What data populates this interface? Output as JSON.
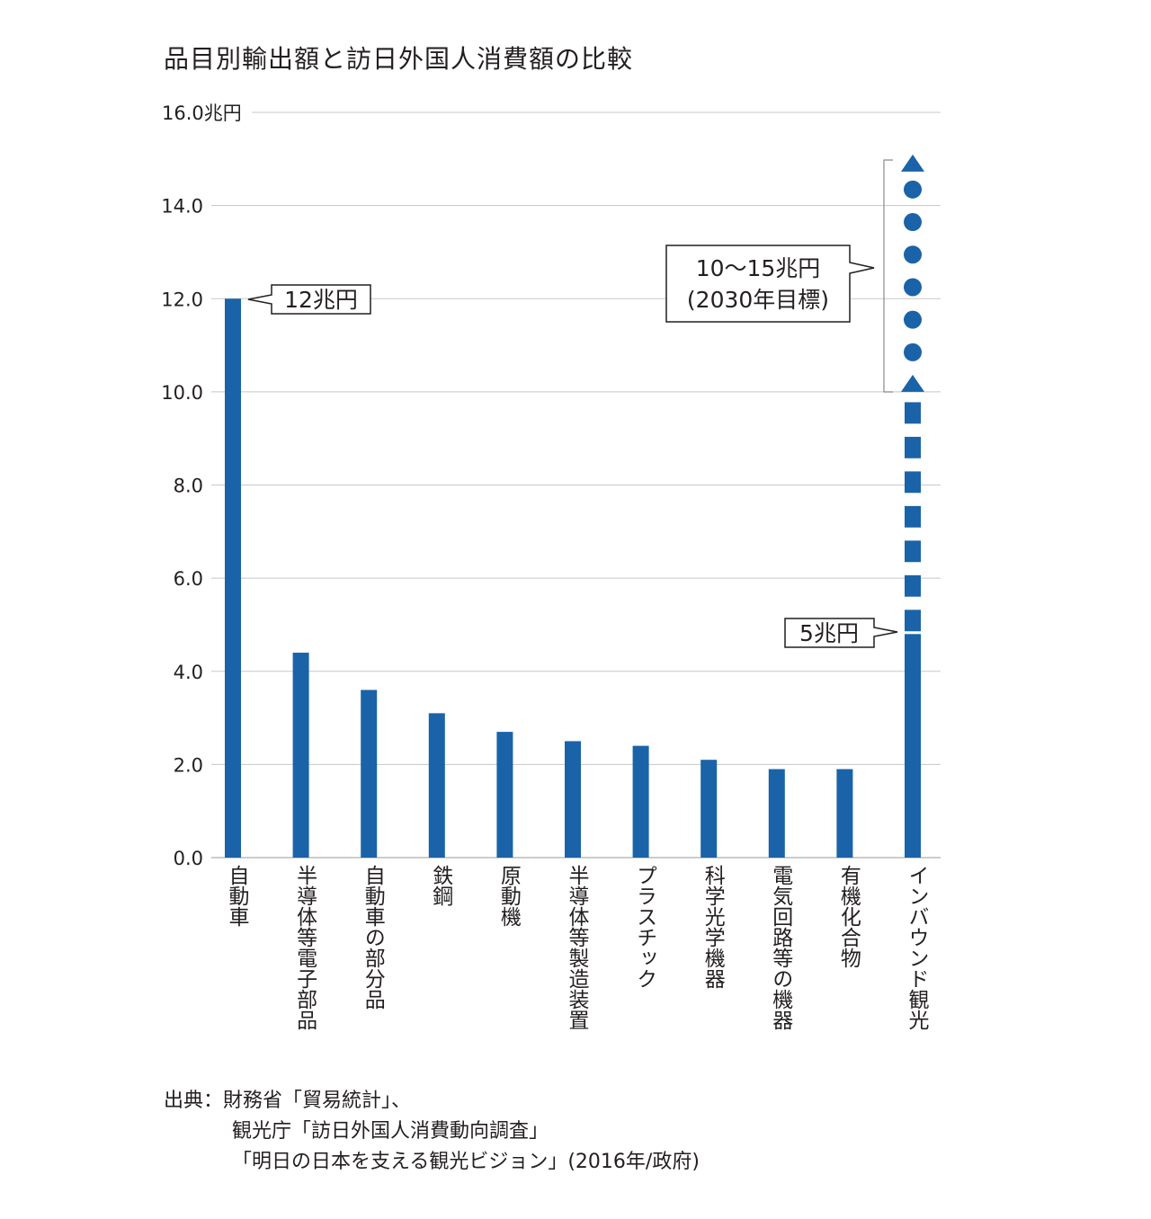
{
  "chart_data": {
    "type": "bar",
    "title": "品目別輸出額と訪日外国人消費額の比較",
    "ylim": [
      0,
      16
    ],
    "y_ticks": [
      "0.0",
      "2.0",
      "4.0",
      "6.0",
      "8.0",
      "10.0",
      "12.0",
      "14.0",
      "16.0兆円"
    ],
    "y_tick_values": [
      0,
      2,
      4,
      6,
      8,
      10,
      12,
      14,
      16
    ],
    "grid": true,
    "categories": [
      "自動車",
      "半導体等電子部品",
      "自動車の部分品",
      "鉄鋼",
      "原動機",
      "半導体等製造装置",
      "プラスチック",
      "科学光学機器",
      "電気回路等の機器",
      "有機化合物",
      "インバウンド観光"
    ],
    "values": [
      12.0,
      4.4,
      3.6,
      3.1,
      2.7,
      2.5,
      2.4,
      2.1,
      1.9,
      1.9,
      4.8
    ],
    "inbound_target_range": [
      10,
      15
    ],
    "colors": {
      "bar": "#1a63a8",
      "grid": "#c8c8c8",
      "text": "#231f20"
    },
    "annotations": {
      "automobile": "12兆円",
      "inbound_current": "5兆円",
      "target_line1": "10〜15兆円",
      "target_line2": "(2030年目標)"
    }
  },
  "source": {
    "line1": "出典：財務省「貿易統計」、",
    "line2": "観光庁「訪日外国人消費動向調査」",
    "line3": "「明日の日本を支える観光ビジョン」(2016年/政府)"
  }
}
